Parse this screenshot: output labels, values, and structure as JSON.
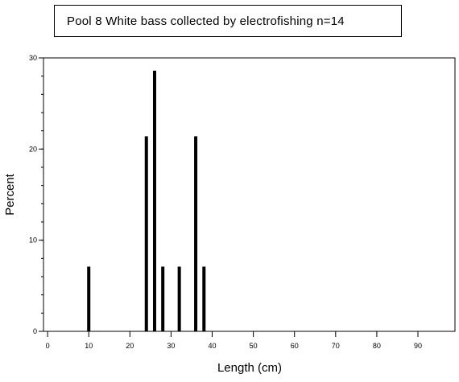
{
  "chart_data": {
    "type": "bar",
    "title": "Pool 8 White bass collected by electrofishing n=14",
    "xlabel": "Length (cm)",
    "ylabel": "Percent",
    "xlim": [
      -1,
      99
    ],
    "ylim": [
      0,
      30
    ],
    "x_ticks": [
      0,
      10,
      20,
      30,
      40,
      50,
      60,
      70,
      80,
      90
    ],
    "y_ticks": [
      0,
      10,
      20,
      30
    ],
    "x_minor_step": 2,
    "y_minor_step": 2,
    "grid": false,
    "legend": "none",
    "bar_color": "#000000",
    "categories": [
      10,
      24,
      26,
      28,
      32,
      36,
      38
    ],
    "values": [
      7.1,
      21.4,
      28.6,
      7.1,
      7.1,
      21.4,
      7.1
    ]
  }
}
